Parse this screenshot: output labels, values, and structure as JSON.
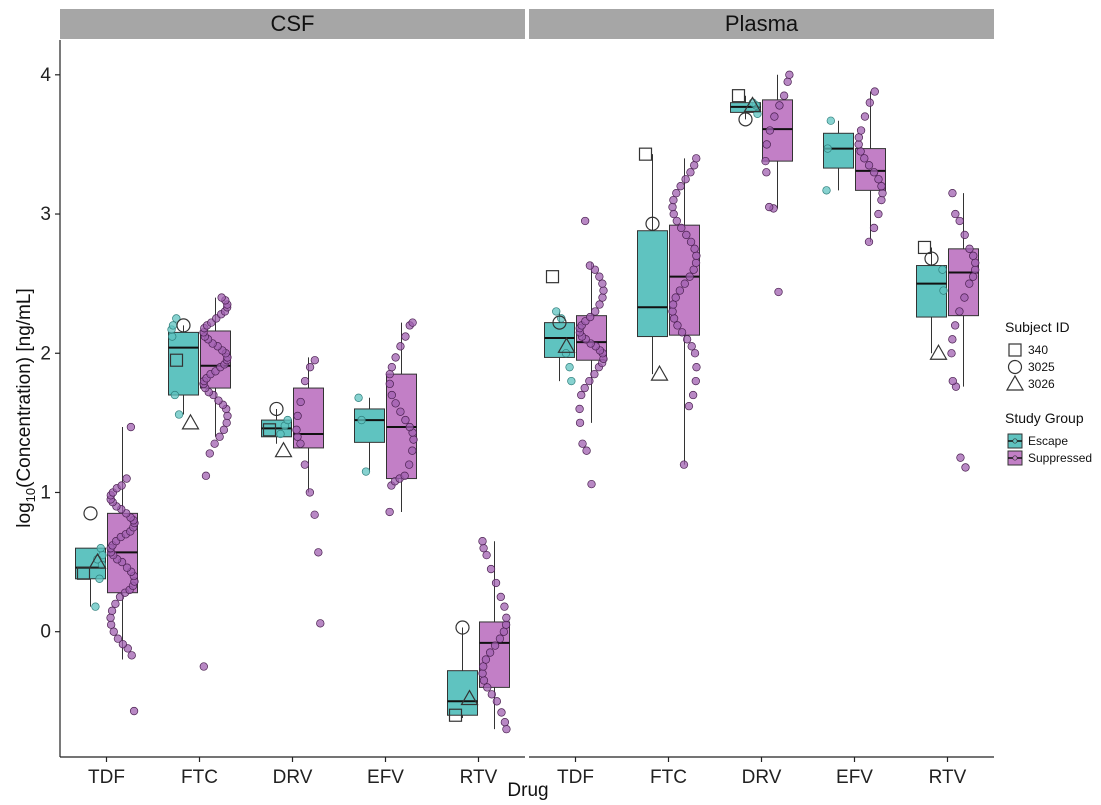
{
  "chart_data": {
    "type": "box",
    "xlabel": "Drug",
    "ylabel": "log10(Concentration) [ng/mL]",
    "ylabel_parts": {
      "prefix": "log",
      "sub": "10",
      "suffix": "(Concentration) [ng/mL]"
    },
    "ylim": [
      -0.9,
      4.25
    ],
    "yticks": [
      0,
      1,
      2,
      3,
      4
    ],
    "grid": false,
    "categories": [
      "TDF",
      "FTC",
      "DRV",
      "EFV",
      "RTV"
    ],
    "colors": {
      "Escape": "#5fc3c0",
      "Suppressed": "#c27fc6",
      "strip": "#a6a6a6",
      "point_fill": "#a060b0",
      "point_stroke": "#4a2050"
    },
    "legend": {
      "position": "right",
      "shape_title": "Subject ID",
      "shapes": [
        {
          "label": "340",
          "shape": "square"
        },
        {
          "label": "3025",
          "shape": "circle"
        },
        {
          "label": "3026",
          "shape": "triangle"
        }
      ],
      "group_title": "Study Group",
      "groups": [
        {
          "label": "Escape",
          "color": "#5fc3c0"
        },
        {
          "label": "Suppressed",
          "color": "#c27fc6"
        }
      ]
    },
    "panels": [
      {
        "name": "CSF",
        "groups": {
          "TDF": {
            "Escape": {
              "q1": 0.38,
              "median": 0.46,
              "q3": 0.6,
              "low": 0.18,
              "high": 0.6,
              "points": [
                0.18,
                0.38,
                0.48,
                0.55,
                0.6,
                0.52
              ],
              "subjects": {
                "340": 0.42,
                "3025": 0.85,
                "3026": 0.5
              }
            },
            "Suppressed": {
              "q1": 0.28,
              "median": 0.57,
              "q3": 0.85,
              "low": -0.2,
              "high": 1.47,
              "points": [
                -0.57,
                -0.17,
                -0.12,
                -0.09,
                -0.05,
                0.0,
                0.05,
                0.1,
                0.15,
                0.2,
                0.25,
                0.28,
                0.3,
                0.33,
                0.36,
                0.4,
                0.43,
                0.46,
                0.5,
                0.52,
                0.55,
                0.57,
                0.6,
                0.62,
                0.65,
                0.68,
                0.7,
                0.72,
                0.75,
                0.78,
                0.8,
                0.82,
                0.85,
                0.88,
                0.9,
                0.93,
                0.95,
                0.98,
                1.0,
                1.03,
                1.05,
                1.1,
                1.47
              ]
            }
          },
          "FTC": {
            "Escape": {
              "q1": 1.7,
              "median": 2.04,
              "q3": 2.15,
              "low": 1.56,
              "high": 2.2,
              "points": [
                1.56,
                1.7,
                2.12,
                2.17,
                2.2,
                2.25
              ],
              "subjects": {
                "340": 1.95,
                "3025": 2.2,
                "3026": 1.5
              }
            },
            "Suppressed": {
              "q1": 1.75,
              "median": 1.91,
              "q3": 2.16,
              "low": 1.4,
              "high": 2.4,
              "points": [
                -0.25,
                1.12,
                1.28,
                1.35,
                1.4,
                1.45,
                1.5,
                1.55,
                1.6,
                1.63,
                1.66,
                1.7,
                1.72,
                1.75,
                1.78,
                1.8,
                1.82,
                1.85,
                1.87,
                1.9,
                1.92,
                1.95,
                1.97,
                2.0,
                2.02,
                2.05,
                2.07,
                2.1,
                2.12,
                2.15,
                2.18,
                2.2,
                2.22,
                2.25,
                2.28,
                2.3,
                2.33,
                2.35,
                2.38,
                2.4
              ]
            }
          },
          "DRV": {
            "Escape": {
              "q1": 1.4,
              "median": 1.46,
              "q3": 1.52,
              "low": 1.35,
              "high": 1.6,
              "points": [
                1.42,
                1.48,
                1.52
              ],
              "subjects": {
                "340": 1.45,
                "3025": 1.6,
                "3026": 1.3
              }
            },
            "Suppressed": {
              "q1": 1.32,
              "median": 1.42,
              "q3": 1.75,
              "low": 1.0,
              "high": 1.97,
              "points": [
                0.06,
                0.57,
                0.84,
                1.0,
                1.2,
                1.35,
                1.4,
                1.45,
                1.55,
                1.65,
                1.8,
                1.9,
                1.95
              ]
            }
          },
          "EFV": {
            "Escape": {
              "q1": 1.36,
              "median": 1.52,
              "q3": 1.6,
              "low": 1.15,
              "high": 1.68,
              "points": [
                1.15,
                1.52,
                1.68
              ]
            },
            "Suppressed": {
              "q1": 1.1,
              "median": 1.47,
              "q3": 1.85,
              "low": 0.86,
              "high": 2.22,
              "points": [
                0.86,
                1.05,
                1.08,
                1.1,
                1.12,
                1.2,
                1.3,
                1.38,
                1.43,
                1.47,
                1.52,
                1.58,
                1.64,
                1.7,
                1.78,
                1.85,
                1.9,
                1.97,
                2.05,
                2.12,
                2.2,
                2.22
              ]
            }
          },
          "RTV": {
            "Escape": {
              "q1": -0.6,
              "median": -0.5,
              "q3": -0.28,
              "low": -0.62,
              "high": 0.03,
              "points": [],
              "subjects": {
                "340": -0.6,
                "3025": 0.03,
                "3026": -0.48
              }
            },
            "Suppressed": {
              "q1": -0.4,
              "median": -0.08,
              "q3": 0.07,
              "low": -0.7,
              "high": 0.65,
              "points": [
                -0.7,
                -0.65,
                -0.58,
                -0.5,
                -0.45,
                -0.4,
                -0.35,
                -0.3,
                -0.25,
                -0.2,
                -0.15,
                -0.1,
                -0.05,
                0.0,
                0.05,
                0.1,
                0.18,
                0.25,
                0.35,
                0.45,
                0.55,
                0.6,
                0.65
              ]
            }
          }
        }
      },
      {
        "name": "Plasma",
        "groups": {
          "TDF": {
            "Escape": {
              "q1": 1.97,
              "median": 2.11,
              "q3": 2.22,
              "low": 1.8,
              "high": 2.3,
              "points": [
                1.8,
                1.9,
                2.0,
                2.25,
                2.3
              ],
              "subjects": {
                "340": 2.55,
                "3025": 2.22,
                "3026": 2.05
              }
            },
            "Suppressed": {
              "q1": 1.95,
              "median": 2.08,
              "q3": 2.27,
              "low": 1.5,
              "high": 2.65,
              "points": [
                1.06,
                1.3,
                1.35,
                1.5,
                1.6,
                1.7,
                1.75,
                1.8,
                1.85,
                1.9,
                1.93,
                1.96,
                2.0,
                2.02,
                2.05,
                2.07,
                2.1,
                2.12,
                2.15,
                2.18,
                2.2,
                2.23,
                2.26,
                2.3,
                2.35,
                2.4,
                2.45,
                2.5,
                2.55,
                2.6,
                2.63,
                2.95
              ]
            }
          },
          "FTC": {
            "Escape": {
              "q1": 2.12,
              "median": 2.33,
              "q3": 2.88,
              "low": 1.85,
              "high": 3.43,
              "points": [],
              "subjects": {
                "340": 3.43,
                "3025": 2.93,
                "3026": 1.85
              }
            },
            "Suppressed": {
              "q1": 2.13,
              "median": 2.55,
              "q3": 2.92,
              "low": 1.2,
              "high": 3.4,
              "points": [
                1.2,
                1.62,
                1.7,
                1.8,
                1.9,
                2.0,
                2.05,
                2.1,
                2.15,
                2.2,
                2.25,
                2.3,
                2.35,
                2.4,
                2.45,
                2.5,
                2.55,
                2.6,
                2.65,
                2.7,
                2.75,
                2.8,
                2.85,
                2.9,
                2.95,
                3.0,
                3.05,
                3.1,
                3.15,
                3.2,
                3.25,
                3.3,
                3.35,
                3.4
              ]
            }
          },
          "DRV": {
            "Escape": {
              "q1": 3.73,
              "median": 3.77,
              "q3": 3.8,
              "low": 3.68,
              "high": 3.85,
              "points": [
                3.72,
                3.78,
                3.8
              ],
              "subjects": {
                "340": 3.85,
                "3025": 3.68,
                "3026": 3.78
              }
            },
            "Suppressed": {
              "q1": 3.38,
              "median": 3.61,
              "q3": 3.82,
              "low": 3.04,
              "high": 4.0,
              "points": [
                2.44,
                3.04,
                3.05,
                3.3,
                3.38,
                3.5,
                3.6,
                3.7,
                3.78,
                3.85,
                3.95,
                4.0
              ]
            }
          },
          "EFV": {
            "Escape": {
              "q1": 3.33,
              "median": 3.47,
              "q3": 3.58,
              "low": 3.17,
              "high": 3.67,
              "points": [
                3.17,
                3.47,
                3.67
              ]
            },
            "Suppressed": {
              "q1": 3.17,
              "median": 3.31,
              "q3": 3.47,
              "low": 2.8,
              "high": 3.88,
              "points": [
                2.8,
                2.9,
                3.0,
                3.1,
                3.15,
                3.2,
                3.25,
                3.3,
                3.35,
                3.4,
                3.45,
                3.5,
                3.55,
                3.6,
                3.7,
                3.8,
                3.88
              ]
            }
          },
          "RTV": {
            "Escape": {
              "q1": 2.26,
              "median": 2.5,
              "q3": 2.63,
              "low": 2.0,
              "high": 2.76,
              "points": [
                2.45,
                2.6
              ],
              "subjects": {
                "340": 2.76,
                "3025": 2.68,
                "3026": 2.0
              }
            },
            "Suppressed": {
              "q1": 2.27,
              "median": 2.58,
              "q3": 2.75,
              "low": 1.76,
              "high": 3.15,
              "points": [
                1.18,
                1.25,
                1.76,
                1.8,
                2.0,
                2.1,
                2.2,
                2.3,
                2.4,
                2.5,
                2.55,
                2.6,
                2.65,
                2.7,
                2.75,
                2.85,
                2.95,
                3.0,
                3.15
              ]
            }
          }
        }
      }
    ]
  }
}
